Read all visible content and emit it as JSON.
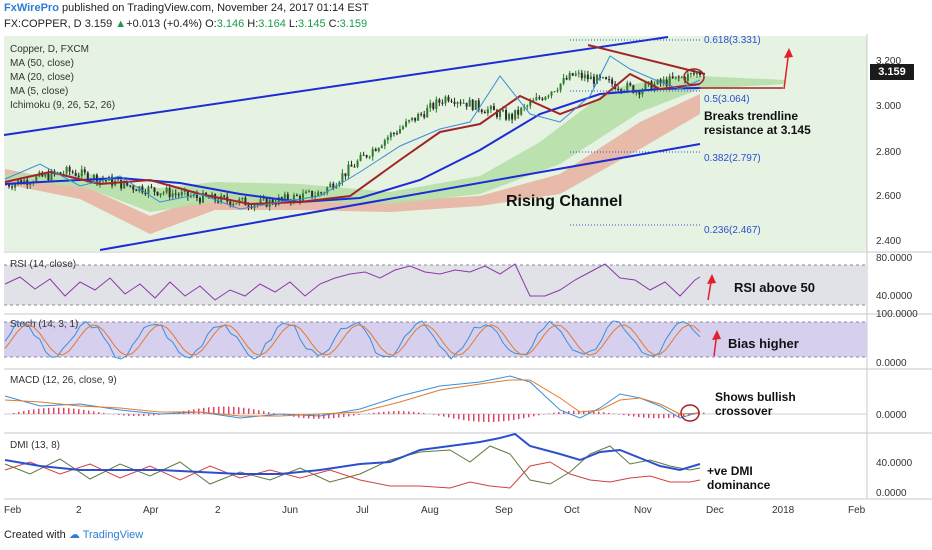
{
  "header": {
    "publisher": "FxWirePro",
    "published_text": " published on TradingView.com, November 24, 2017 01:14 EST",
    "symbol": "FX:COPPER, D",
    "last": "3.159",
    "change": "+0.013 (+0.4%)",
    "ohlc_o": "3.146",
    "ohlc_h": "3.164",
    "ohlc_l": "3.145",
    "ohlc_c": "3.159"
  },
  "footer": {
    "created_with": "Created with",
    "brand": "TradingView"
  },
  "colors": {
    "bg": "#ffffff",
    "price_pane_bg": "#e6f2e2",
    "channel": "#1c2bd6",
    "ma50": "#1c2bd6",
    "ma20": "#a0242a",
    "ma5": "#3b8dd6",
    "up_candle": "#2c7a2c",
    "down_candle": "#2b2b2b",
    "cloud_green": "#b5dfa8",
    "cloud_red": "#e6b0a0",
    "rsi_line": "#8a3aa8",
    "rsi_band": "#e1e1e8",
    "stoch_band": "#d7cfee",
    "stoch_k": "#3a8fd8",
    "stoch_d": "#e07b2e",
    "macd_line": "#3a8fd8",
    "signal_line": "#e07b2e",
    "hist": "#e0436a",
    "dmi_plus": "#5c7a3a",
    "dmi_minus": "#d04040",
    "adx": "#2c4fd0",
    "annot_red": "#e0202a",
    "fib_text": "#2c4fd0",
    "price_tag": "#1b1b1b"
  },
  "chart_data": {
    "type": "candlestick",
    "symbol": "FX:COPPER, D",
    "title": "Copper, D, FXCM",
    "legend": [
      "MA (50, close)",
      "MA (20, close)",
      "MA (5, close)",
      "Ichimoku (9, 26, 52, 26)"
    ],
    "price_axis": {
      "ticks": [
        "3.200",
        "3.000",
        "2.800",
        "2.600",
        "2.400"
      ],
      "range": [
        2.33,
        3.33
      ],
      "last_price_tag": "3.159"
    },
    "x_axis_labels": [
      "Feb",
      "2",
      "Apr",
      "2",
      "Jun",
      "Jul",
      "Aug",
      "Sep",
      "Oct",
      "Nov",
      "Dec",
      "2018",
      "Feb"
    ],
    "approx_close_path": [
      {
        "date": "Jan 2017",
        "close": 2.64
      },
      {
        "date": "Feb 2017",
        "close": 2.7
      },
      {
        "date": "Mar 2017",
        "close": 2.63
      },
      {
        "date": "Apr 2017",
        "close": 2.58
      },
      {
        "date": "May 2017",
        "close": 2.55
      },
      {
        "date": "Jun 2017",
        "close": 2.6
      },
      {
        "date": "Jul 2017",
        "close": 2.85
      },
      {
        "date": "Aug 2017",
        "close": 3.05
      },
      {
        "date": "Sep 2017",
        "close": 2.95
      },
      {
        "date": "Oct 2017",
        "close": 3.15
      },
      {
        "date": "Nov 2017",
        "close": 3.08
      },
      {
        "date": "Nov 24 2017",
        "close": 3.159
      }
    ],
    "fib_levels": [
      {
        "label": "0.618(3.331)",
        "value": 3.331
      },
      {
        "label": "0.5(3.064)",
        "value": 3.064
      },
      {
        "label": "0.382(2.797)",
        "value": 2.797
      },
      {
        "label": "0.236(2.467)",
        "value": 2.467
      }
    ],
    "annotations": [
      "Rising Channel",
      "Breaks trendline resistance at 3.145",
      "RSI above 50",
      "Bias higher",
      "Shows bullish crossover",
      "+ve DMI dominance"
    ],
    "panes": [
      {
        "name": "RSI (14, close)",
        "ticks": [
          "80.0000",
          "40.0000"
        ]
      },
      {
        "name": "Stoch (14, 3, 1)",
        "ticks": [
          "100.0000",
          "0.0000"
        ]
      },
      {
        "name": "MACD (12, 26, close, 9)",
        "ticks": [
          "0.0000"
        ]
      },
      {
        "name": "DMI (13, 8)",
        "ticks": [
          "40.0000",
          "0.0000"
        ]
      }
    ]
  }
}
